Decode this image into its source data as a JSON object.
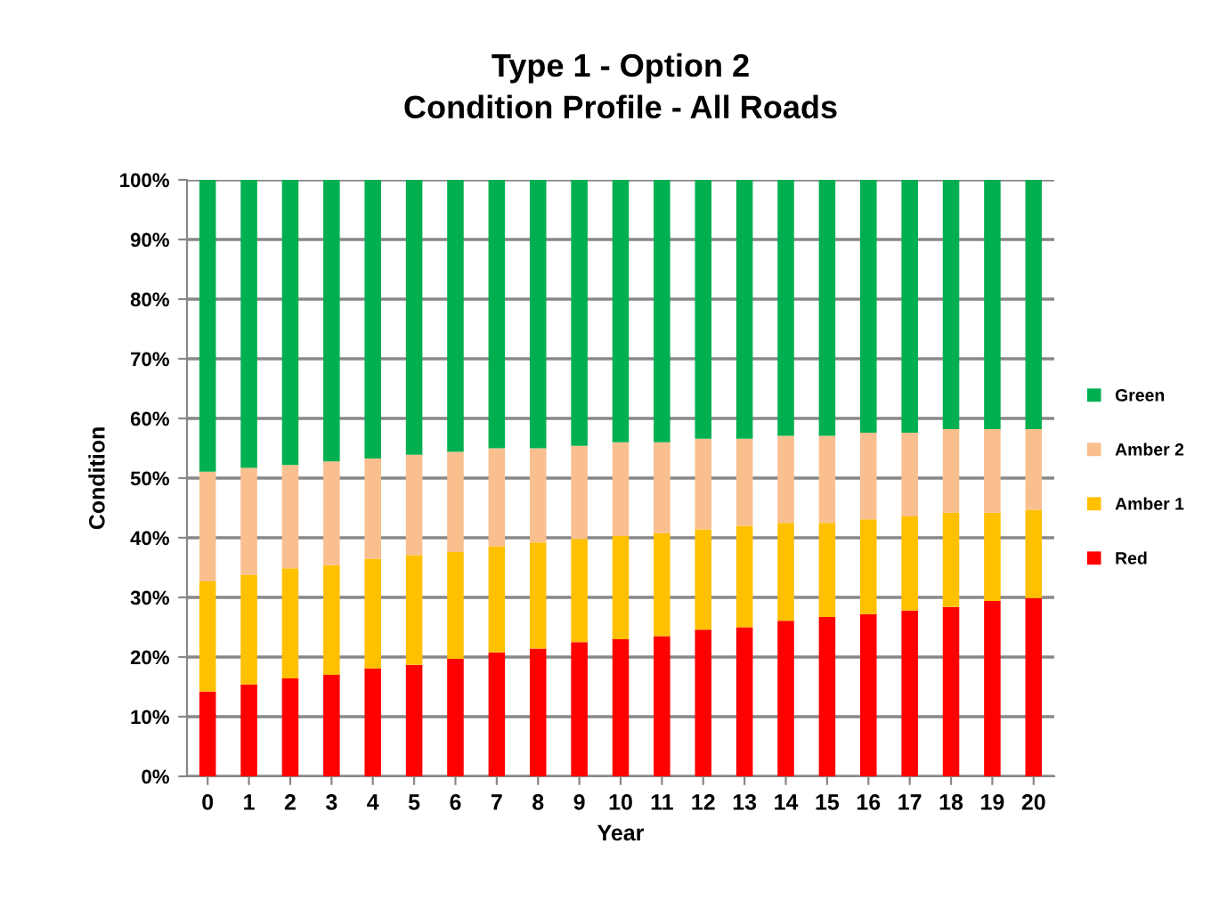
{
  "chart_data": {
    "type": "bar",
    "stacked": true,
    "title": "Type 1 - Option 2\nCondition Profile - All Roads",
    "xlabel": "Year",
    "ylabel": "Condition",
    "categories": [
      "0",
      "1",
      "2",
      "3",
      "4",
      "5",
      "6",
      "7",
      "8",
      "9",
      "10",
      "11",
      "12",
      "13",
      "14",
      "15",
      "16",
      "17",
      "18",
      "19",
      "20"
    ],
    "series": [
      {
        "name": "Red",
        "color": "#ff0000",
        "values": [
          14.2,
          15.4,
          16.4,
          17.0,
          18.1,
          18.7,
          19.7,
          20.8,
          21.4,
          22.5,
          23.0,
          23.5,
          24.6,
          25.0,
          26.1,
          26.7,
          27.2,
          27.8,
          28.4,
          29.4,
          29.9
        ]
      },
      {
        "name": "Amber 1",
        "color": "#ffc000",
        "values": [
          18.5,
          18.4,
          18.5,
          18.4,
          18.4,
          18.4,
          17.9,
          17.8,
          17.8,
          17.3,
          17.3,
          17.3,
          16.8,
          17.0,
          16.4,
          15.8,
          15.9,
          15.8,
          15.8,
          14.8,
          14.8
        ]
      },
      {
        "name": "Amber 2",
        "color": "#fabf8f",
        "values": [
          18.4,
          17.9,
          17.3,
          17.4,
          16.8,
          16.8,
          16.8,
          16.4,
          15.8,
          15.6,
          15.7,
          15.2,
          15.2,
          14.6,
          14.6,
          14.6,
          14.5,
          14.0,
          14.0,
          14.0,
          13.5
        ]
      },
      {
        "name": "Green",
        "color": "#00b050",
        "values": [
          48.9,
          48.3,
          47.8,
          47.2,
          46.7,
          46.1,
          45.6,
          45.0,
          45.0,
          44.6,
          44.0,
          44.0,
          43.4,
          43.4,
          42.9,
          42.9,
          42.4,
          42.4,
          41.8,
          41.8,
          41.8
        ]
      }
    ],
    "ylim": [
      0,
      100
    ],
    "yticks": [
      {
        "value": 0,
        "label": "0%"
      },
      {
        "value": 10,
        "label": "10%"
      },
      {
        "value": 20,
        "label": "20%"
      },
      {
        "value": 30,
        "label": "30%"
      },
      {
        "value": 40,
        "label": "40%"
      },
      {
        "value": 50,
        "label": "50%"
      },
      {
        "value": 60,
        "label": "60%"
      },
      {
        "value": 70,
        "label": "70%"
      },
      {
        "value": 80,
        "label": "80%"
      },
      {
        "value": 90,
        "label": "90%"
      },
      {
        "value": 100,
        "label": "100%"
      }
    ],
    "grid": "y",
    "legend": "right"
  }
}
